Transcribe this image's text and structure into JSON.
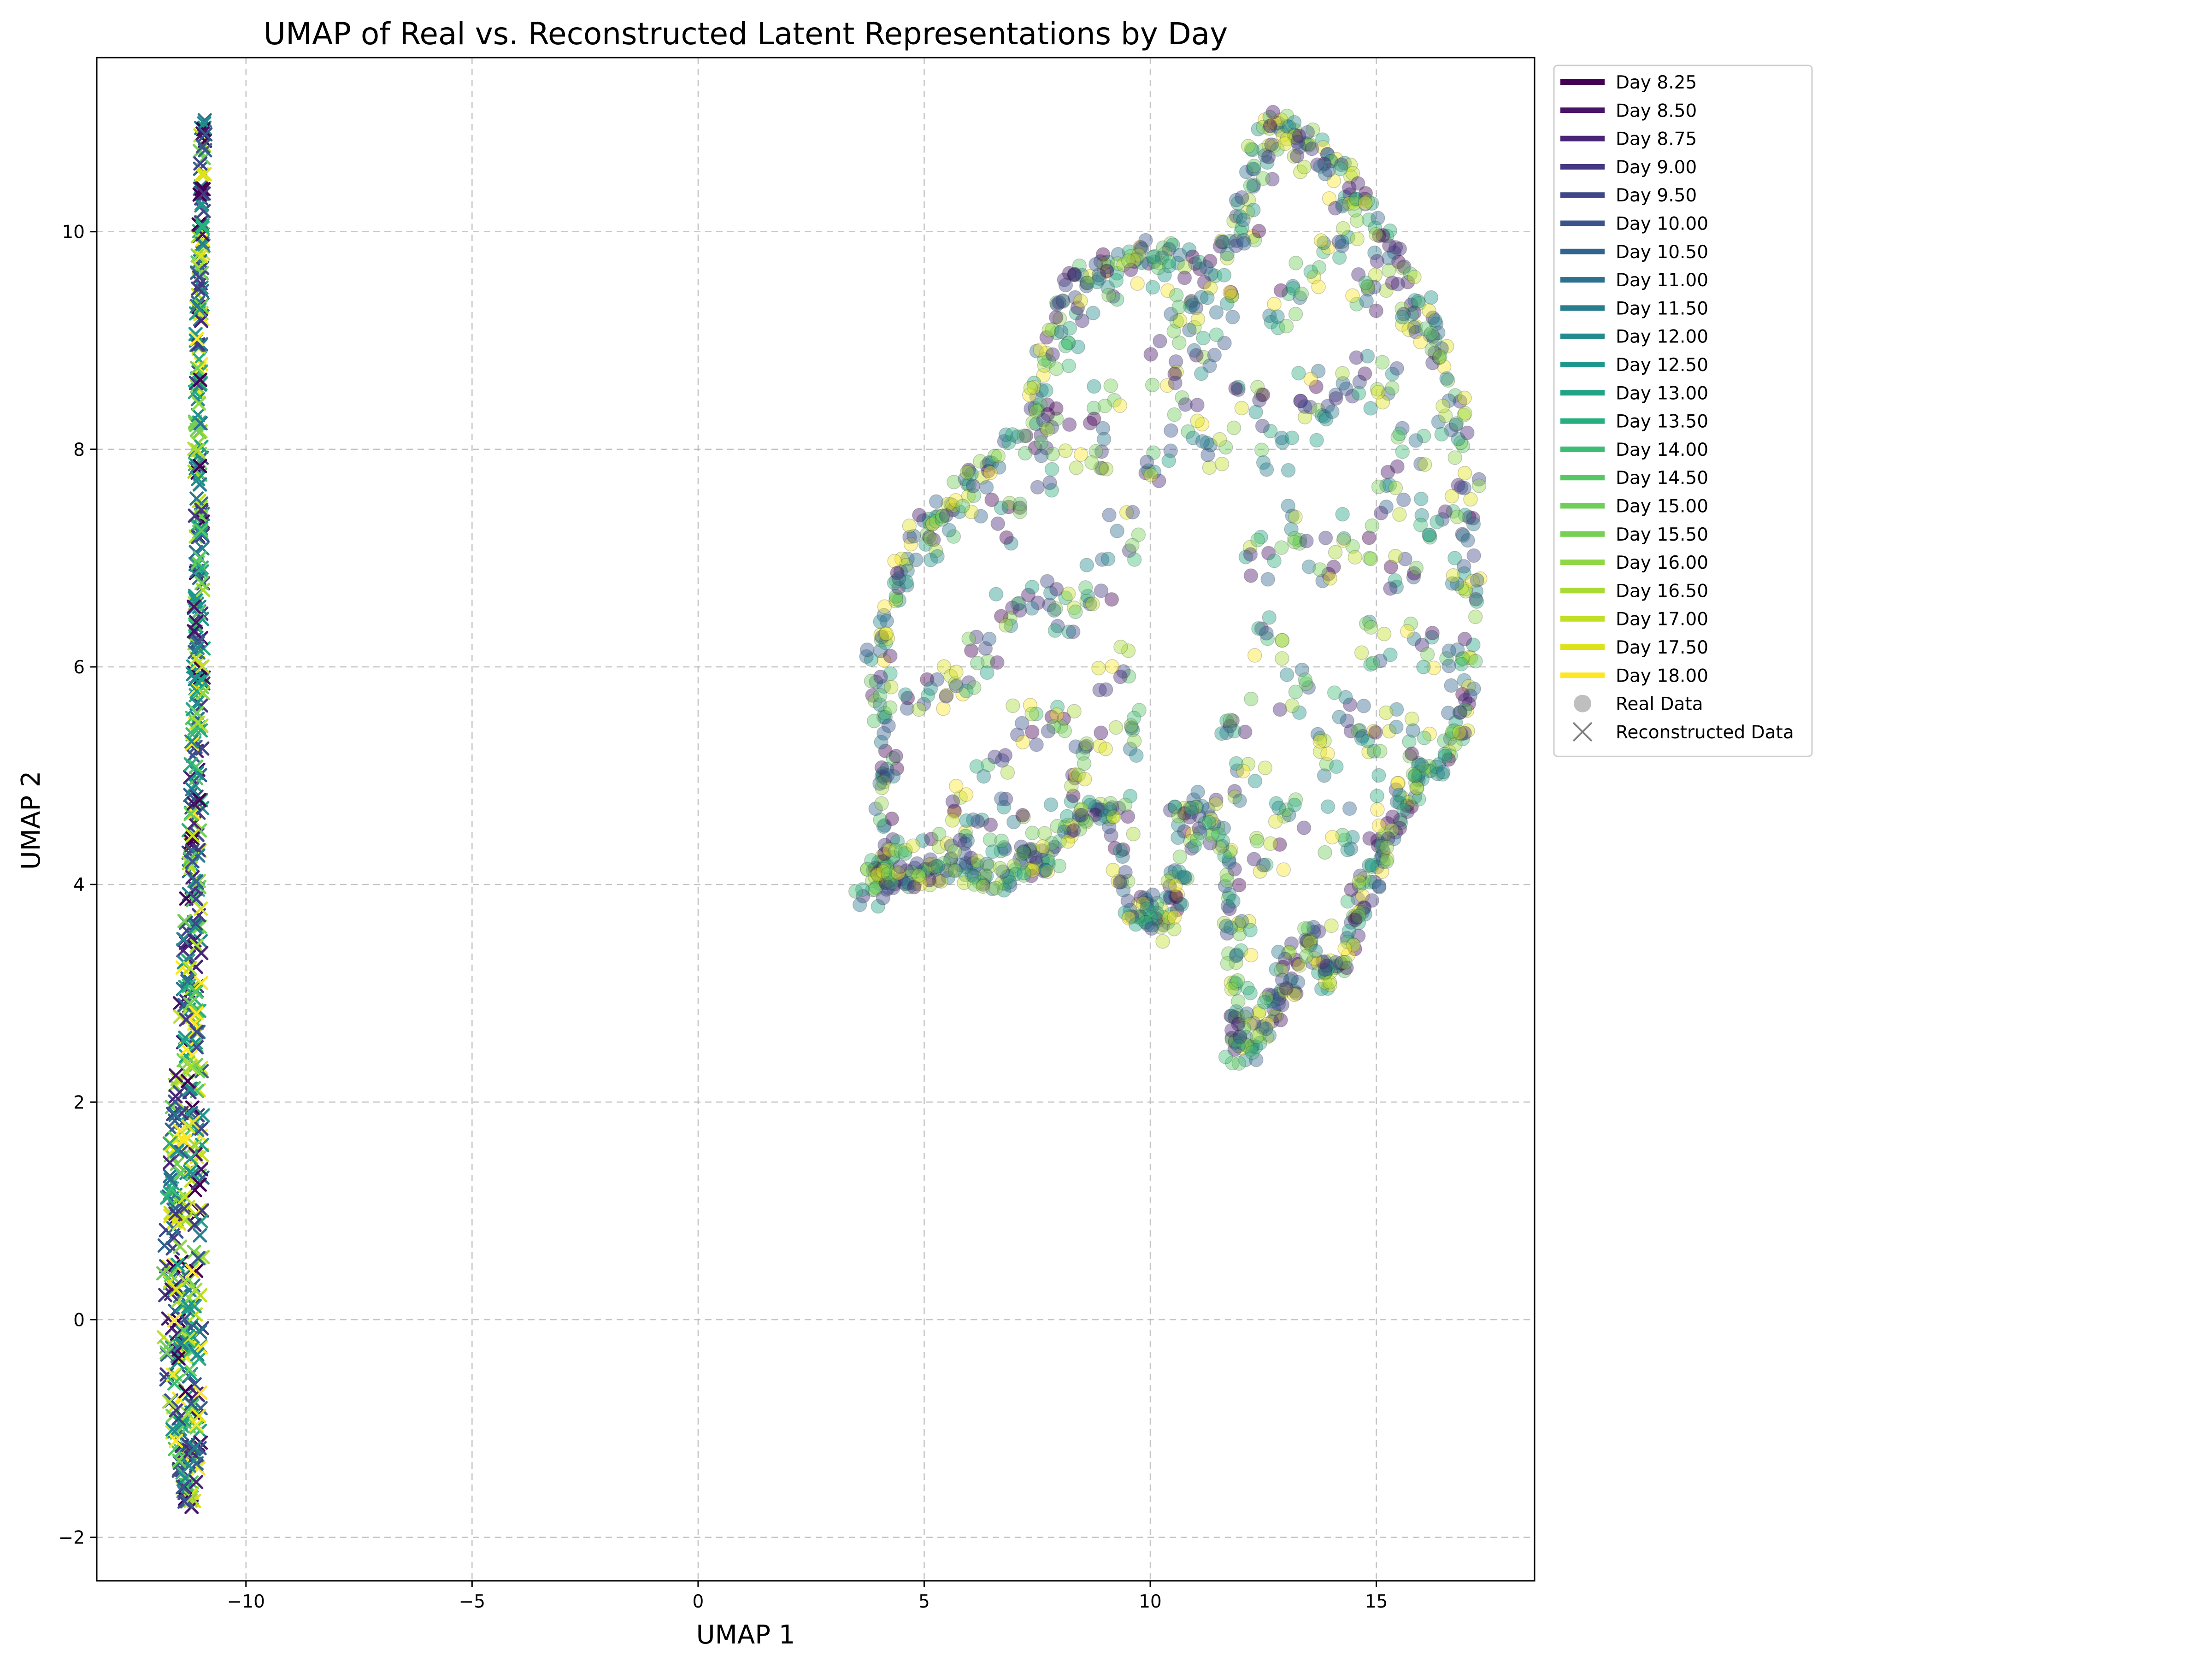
{
  "chart_data": {
    "type": "scatter",
    "title": "UMAP of Real vs. Reconstructed Latent Representations by Day",
    "xlabel": "UMAP 1",
    "ylabel": "UMAP 2",
    "xlim": [
      -13.3,
      18.5
    ],
    "ylim": [
      -2.4,
      11.6
    ],
    "xticks": [
      -10,
      -5,
      0,
      5,
      10,
      15
    ],
    "yticks": [
      -2,
      0,
      2,
      4,
      6,
      8,
      10
    ],
    "grid": true,
    "legend_position": "outside-right",
    "colormap": "viridis",
    "marker_styles": [
      {
        "name": "Real Data",
        "marker": "circle",
        "alpha": 0.4
      },
      {
        "name": "Reconstructed Data",
        "marker": "x"
      }
    ],
    "days": [
      "8.25",
      "8.50",
      "8.75",
      "9.00",
      "9.50",
      "10.00",
      "10.50",
      "11.00",
      "11.50",
      "12.00",
      "12.50",
      "13.00",
      "13.50",
      "14.00",
      "14.50",
      "15.00",
      "15.50",
      "16.00",
      "16.50",
      "17.00",
      "17.50",
      "18.00"
    ],
    "legend": [
      {
        "label": "Day 8.25",
        "color": "#440154"
      },
      {
        "label": "Day 8.50",
        "color": "#481467"
      },
      {
        "label": "Day 8.75",
        "color": "#482576"
      },
      {
        "label": "Day 9.00",
        "color": "#453781"
      },
      {
        "label": "Day 9.50",
        "color": "#3f4788"
      },
      {
        "label": "Day 10.00",
        "color": "#39558c"
      },
      {
        "label": "Day 10.50",
        "color": "#32648e"
      },
      {
        "label": "Day 11.00",
        "color": "#2d718e"
      },
      {
        "label": "Day 11.50",
        "color": "#287d8e"
      },
      {
        "label": "Day 12.00",
        "color": "#238a8d"
      },
      {
        "label": "Day 12.50",
        "color": "#1f968b"
      },
      {
        "label": "Day 13.00",
        "color": "#20a386"
      },
      {
        "label": "Day 13.50",
        "color": "#29af7f"
      },
      {
        "label": "Day 14.00",
        "color": "#3dbc74"
      },
      {
        "label": "Day 14.50",
        "color": "#56c667"
      },
      {
        "label": "Day 15.00",
        "color": "#6ece58"
      },
      {
        "label": "Day 15.50",
        "color": "#75d054"
      },
      {
        "label": "Day 16.00",
        "color": "#8fd744"
      },
      {
        "label": "Day 16.50",
        "color": "#a8db34"
      },
      {
        "label": "Day 17.00",
        "color": "#c0df25"
      },
      {
        "label": "Day 17.50",
        "color": "#dde318"
      },
      {
        "label": "Day 18.00",
        "color": "#fde725"
      },
      {
        "label": "Real Data",
        "color": "#808080",
        "marker": "circle"
      },
      {
        "label": "Reconstructed Data",
        "color": "#808080",
        "marker": "x"
      }
    ],
    "series": [
      {
        "name": "Real Data",
        "marker": "circle",
        "regions": [
          {
            "x_range": [
              3.8,
              17.1
            ],
            "y_range": [
              2.4,
              11.0
            ]
          }
        ],
        "outline": [
          [
            3.8,
            4.0
          ],
          [
            4.2,
            4.3
          ],
          [
            4.0,
            5.2
          ],
          [
            4.0,
            6.2
          ],
          [
            4.6,
            7.0
          ],
          [
            5.5,
            7.5
          ],
          [
            6.3,
            7.8
          ],
          [
            7.3,
            8.2
          ],
          [
            7.7,
            9.0
          ],
          [
            8.3,
            9.6
          ],
          [
            9.2,
            9.7
          ],
          [
            10.2,
            9.8
          ],
          [
            11.5,
            9.7
          ],
          [
            12.0,
            10.2
          ],
          [
            12.5,
            10.9
          ],
          [
            13.1,
            11.0
          ],
          [
            13.9,
            10.7
          ],
          [
            14.8,
            10.3
          ],
          [
            15.5,
            9.7
          ],
          [
            16.3,
            9.2
          ],
          [
            16.8,
            8.4
          ],
          [
            17.1,
            7.0
          ],
          [
            17.0,
            5.8
          ],
          [
            16.6,
            5.2
          ],
          [
            15.8,
            4.9
          ],
          [
            15.2,
            4.4
          ],
          [
            14.8,
            4.0
          ],
          [
            14.5,
            3.5
          ],
          [
            13.9,
            3.1
          ],
          [
            13.5,
            3.6
          ],
          [
            13.0,
            3.1
          ],
          [
            12.5,
            2.7
          ],
          [
            12.0,
            2.4
          ],
          [
            11.8,
            2.9
          ],
          [
            11.8,
            4.0
          ],
          [
            11.5,
            4.5
          ],
          [
            10.9,
            4.8
          ],
          [
            10.5,
            3.8
          ],
          [
            10.0,
            3.7
          ],
          [
            9.6,
            3.8
          ],
          [
            9.1,
            4.6
          ],
          [
            8.5,
            4.7
          ],
          [
            7.8,
            4.2
          ],
          [
            7.2,
            4.2
          ],
          [
            6.7,
            4.0
          ],
          [
            6.0,
            4.2
          ],
          [
            5.4,
            4.1
          ],
          [
            4.8,
            4.1
          ],
          [
            4.3,
            4.1
          ],
          [
            3.8,
            4.0
          ]
        ],
        "sample_points": [
          [
            3.8,
            4.0
          ],
          [
            4.2,
            4.2
          ],
          [
            4.4,
            4.1
          ],
          [
            5.0,
            4.2
          ],
          [
            5.6,
            4.3
          ],
          [
            6.0,
            4.2
          ],
          [
            6.5,
            4.4
          ],
          [
            7.0,
            4.5
          ],
          [
            7.5,
            4.3
          ],
          [
            8.1,
            4.6
          ],
          [
            8.6,
            4.8
          ],
          [
            9.3,
            4.6
          ],
          [
            9.7,
            3.8
          ],
          [
            10.2,
            3.7
          ],
          [
            10.5,
            3.9
          ],
          [
            10.7,
            4.5
          ],
          [
            11.2,
            4.6
          ],
          [
            4.1,
            5.0
          ],
          [
            4.3,
            5.6
          ],
          [
            4.0,
            6.1
          ],
          [
            4.5,
            6.8
          ],
          [
            5.0,
            7.2
          ],
          [
            5.5,
            7.4
          ],
          [
            6.2,
            7.6
          ],
          [
            6.8,
            7.3
          ],
          [
            7.5,
            7.8
          ],
          [
            7.6,
            8.4
          ],
          [
            8.1,
            8.9
          ],
          [
            8.4,
            9.4
          ],
          [
            9.1,
            9.6
          ],
          [
            9.8,
            9.7
          ],
          [
            10.4,
            9.6
          ],
          [
            11.0,
            9.5
          ],
          [
            11.6,
            9.4
          ],
          [
            12.1,
            10.0
          ],
          [
            12.5,
            10.6
          ],
          [
            13.0,
            10.9
          ],
          [
            13.6,
            10.7
          ],
          [
            14.2,
            10.4
          ],
          [
            14.7,
            10.1
          ],
          [
            15.2,
            9.6
          ],
          [
            15.8,
            9.3
          ],
          [
            16.3,
            8.9
          ],
          [
            16.7,
            8.2
          ],
          [
            17.0,
            7.5
          ],
          [
            17.0,
            6.8
          ],
          [
            16.9,
            6.0
          ],
          [
            16.7,
            5.5
          ],
          [
            16.2,
            5.2
          ],
          [
            15.7,
            4.9
          ],
          [
            15.3,
            4.6
          ],
          [
            14.9,
            4.2
          ],
          [
            14.6,
            3.8
          ],
          [
            14.2,
            3.4
          ],
          [
            13.7,
            3.3
          ],
          [
            13.1,
            3.2
          ],
          [
            12.7,
            2.9
          ],
          [
            12.3,
            2.6
          ],
          [
            12.0,
            2.5
          ],
          [
            11.9,
            3.2
          ],
          [
            12.0,
            3.8
          ],
          [
            5.2,
            5.8
          ],
          [
            5.8,
            5.9
          ],
          [
            6.3,
            6.1
          ],
          [
            6.9,
            6.5
          ],
          [
            7.6,
            6.7
          ],
          [
            8.2,
            6.5
          ],
          [
            8.8,
            6.8
          ],
          [
            9.4,
            7.2
          ],
          [
            9.2,
            6.0
          ],
          [
            9.5,
            5.4
          ],
          [
            8.7,
            5.2
          ],
          [
            8.0,
            5.6
          ],
          [
            7.2,
            5.5
          ],
          [
            6.5,
            5.0
          ],
          [
            5.8,
            4.8
          ],
          [
            10.2,
            7.9
          ],
          [
            10.8,
            8.3
          ],
          [
            11.5,
            8.0
          ],
          [
            12.2,
            8.4
          ],
          [
            12.8,
            8.0
          ],
          [
            13.4,
            8.5
          ],
          [
            14.0,
            8.3
          ],
          [
            14.6,
            8.7
          ],
          [
            15.2,
            8.6
          ],
          [
            15.8,
            8.0
          ],
          [
            16.2,
            7.4
          ],
          [
            15.6,
            6.8
          ],
          [
            15.0,
            6.2
          ],
          [
            14.4,
            5.6
          ],
          [
            13.8,
            5.2
          ],
          [
            13.2,
            5.8
          ],
          [
            12.6,
            6.3
          ],
          [
            12.4,
            7.0
          ],
          [
            13.0,
            7.3
          ],
          [
            13.8,
            7.0
          ],
          [
            14.6,
            7.2
          ],
          [
            15.3,
            7.6
          ],
          [
            13.1,
            4.6
          ],
          [
            12.6,
            4.3
          ],
          [
            12.2,
            4.9
          ],
          [
            11.9,
            5.5
          ],
          [
            14.2,
            4.5
          ],
          [
            14.9,
            5.2
          ],
          [
            15.5,
            5.4
          ],
          [
            16.0,
            6.2
          ],
          [
            12.9,
            9.3
          ],
          [
            13.5,
            9.6
          ],
          [
            14.1,
            9.9
          ],
          [
            14.8,
            9.4
          ],
          [
            10.3,
            8.8
          ],
          [
            10.8,
            9.2
          ],
          [
            11.3,
            8.9
          ],
          [
            9.0,
            8.4
          ],
          [
            8.7,
            7.9
          ],
          [
            7.9,
            8.2
          ]
        ]
      },
      {
        "name": "Reconstructed Data",
        "marker": "x",
        "regions": [
          {
            "x_range": [
              -11.9,
              -10.7
            ],
            "y_range": [
              -1.7,
              11.0
            ]
          }
        ],
        "centerline": [
          [
            -11.25,
            -1.7
          ],
          [
            -11.3,
            -1.2
          ],
          [
            -11.4,
            -0.5
          ],
          [
            -11.4,
            0.3
          ],
          [
            -11.35,
            1.2
          ],
          [
            -11.3,
            2.0
          ],
          [
            -11.2,
            3.0
          ],
          [
            -11.15,
            4.0
          ],
          [
            -11.1,
            5.0
          ],
          [
            -11.05,
            6.0
          ],
          [
            -11.05,
            7.0
          ],
          [
            -11.05,
            8.0
          ],
          [
            -11.05,
            9.0
          ],
          [
            -11.0,
            10.0
          ],
          [
            -10.95,
            11.0
          ]
        ],
        "halfwidth": [
          0.1,
          0.3,
          0.42,
          0.45,
          0.4,
          0.35,
          0.25,
          0.18,
          0.14,
          0.12,
          0.11,
          0.1,
          0.08,
          0.07,
          0.06
        ]
      }
    ]
  }
}
